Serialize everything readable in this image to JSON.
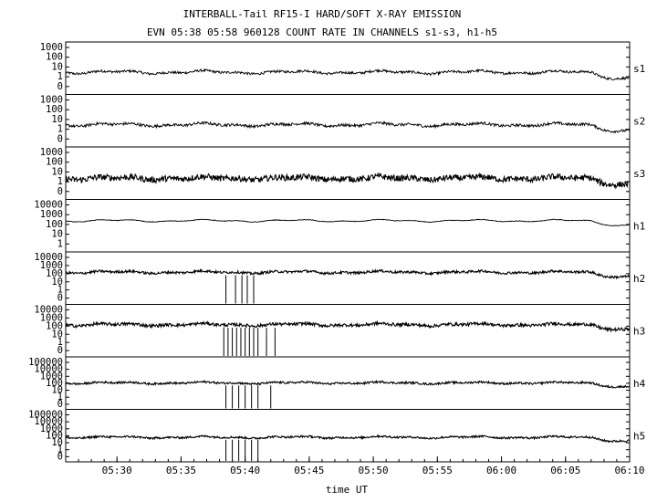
{
  "header": {
    "title": "INTERBALL-Tail RF15-I HARD/SOFT X-RAY EMISSION",
    "subtitle": "EVN 05:38 05:58 960128  COUNT RATE IN CHANNELS s1-s3, h1-h5"
  },
  "chart_data": {
    "type": "line",
    "xlabel": "time UT",
    "x_ticks": [
      "05:30",
      "05:35",
      "05:40",
      "05:45",
      "05:50",
      "05:55",
      "06:00",
      "06:05",
      "06:10"
    ],
    "x_range": [
      "05:26",
      "06:10"
    ],
    "y_scale": "log",
    "grid": false,
    "colors": {
      "line": "#000000",
      "axis": "#000000",
      "background": "#ffffff"
    },
    "series": [
      {
        "name": "s1",
        "y_ticks": [
          "1000",
          "100",
          "10",
          "1",
          "0"
        ],
        "ylim": [
          1,
          1000
        ],
        "background": 12,
        "peak": 65,
        "noise": 0.09,
        "dropouts": []
      },
      {
        "name": "s2",
        "y_ticks": [
          "1000",
          "100",
          "10",
          "1",
          "0"
        ],
        "ylim": [
          1,
          1000
        ],
        "background": 12,
        "peak": 60,
        "noise": 0.1,
        "dropouts": []
      },
      {
        "name": "s3",
        "y_ticks": [
          "1000",
          "100",
          "10",
          "1",
          "0"
        ],
        "ylim": [
          1,
          1000
        ],
        "background": 10,
        "peak": 60,
        "noise": 0.22,
        "dropouts": []
      },
      {
        "name": "h1",
        "y_ticks": [
          "10000",
          "1000",
          "100",
          "10",
          "1"
        ],
        "ylim": [
          1,
          10000
        ],
        "background": 200,
        "peak": 1500,
        "noise": 0.03,
        "dropouts": []
      },
      {
        "name": "h2",
        "y_ticks": [
          "10000",
          "1000",
          "100",
          "10",
          "1",
          "0"
        ],
        "ylim": [
          1,
          10000
        ],
        "background": 250,
        "peak": 1500,
        "noise": 0.12,
        "dropouts": [
          "05:38:30",
          "05:39:15",
          "05:39:45",
          "05:40:10",
          "05:40:40"
        ]
      },
      {
        "name": "h3",
        "y_ticks": [
          "10000",
          "1000",
          "100",
          "10",
          "1",
          "0"
        ],
        "ylim": [
          1,
          10000
        ],
        "background": 250,
        "peak": 1500,
        "noise": 0.15,
        "dropouts": [
          "05:38:20",
          "05:38:40",
          "05:39:00",
          "05:39:20",
          "05:39:40",
          "05:40:00",
          "05:40:20",
          "05:40:40",
          "05:41:00",
          "05:41:40",
          "05:42:20"
        ]
      },
      {
        "name": "h4",
        "y_ticks": [
          "100000",
          "10000",
          "1000",
          "100",
          "10",
          "1",
          "0"
        ],
        "ylim": [
          1,
          100000
        ],
        "background": 200,
        "peak": 1200,
        "noise": 0.12,
        "dropouts": [
          "05:38:30",
          "05:39:00",
          "05:39:30",
          "05:40:00",
          "05:40:30",
          "05:41:00",
          "05:42:00"
        ]
      },
      {
        "name": "h5",
        "y_ticks": [
          "100000",
          "10000",
          "1000",
          "100",
          "10",
          "1",
          "0"
        ],
        "ylim": [
          1,
          100000
        ],
        "background": 120,
        "peak": 1000,
        "noise": 0.12,
        "dropouts": [
          "05:38:30",
          "05:39:00",
          "05:39:30",
          "05:40:00",
          "05:40:30",
          "05:41:00"
        ]
      }
    ]
  }
}
